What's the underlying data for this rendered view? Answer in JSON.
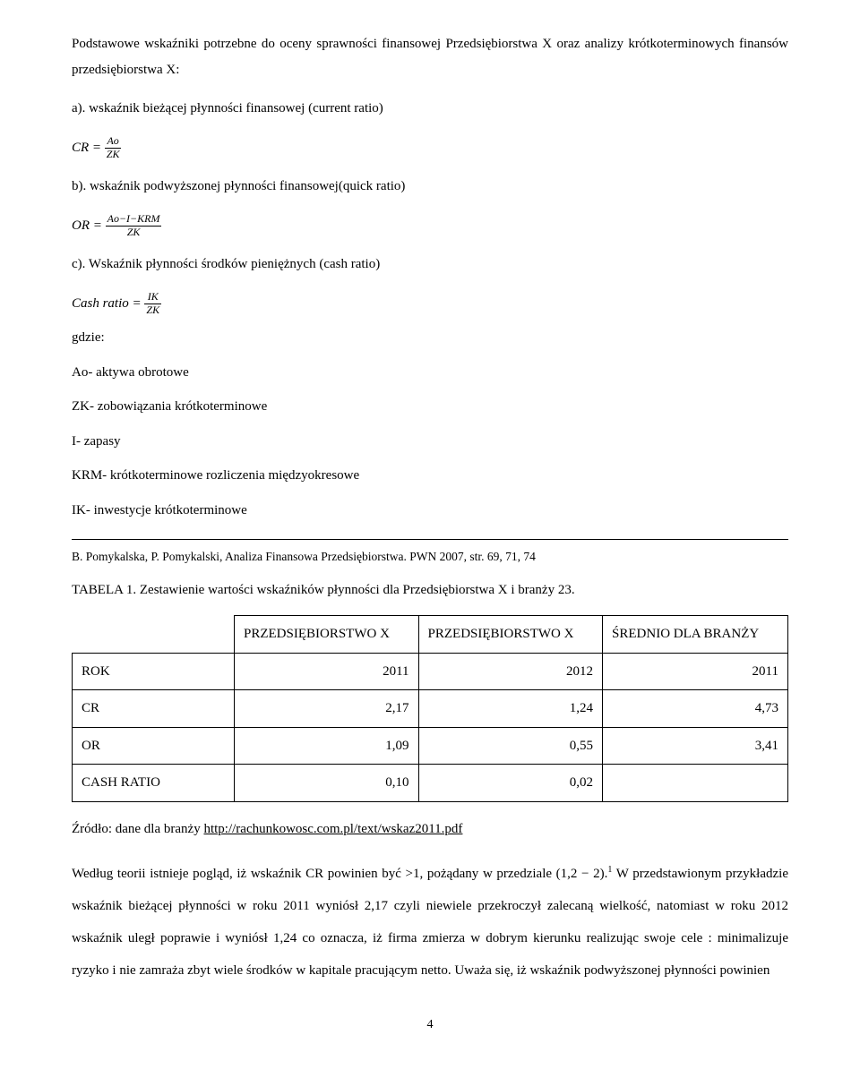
{
  "intro": {
    "p1": "Podstawowe wskaźniki potrzebne do oceny sprawności finansowej Przedsiębiorstwa X oraz analizy krótkoterminowych finansów przedsiębiorstwa X:"
  },
  "sections": {
    "a_label": "a). wskaźnik bieżącej płynności finansowej (current ratio)",
    "b_label": "b). wskaźnik podwyższonej płynności finansowej(quick ratio)",
    "c_label": "c). Wskaźnik płynności środków pieniężnych (cash ratio)"
  },
  "formulas": {
    "cr_lhs": "CR =",
    "cr_num": "Ao",
    "cr_den": "ZK",
    "or_lhs": "OR =",
    "or_num": "Ao−I−KRM",
    "or_den": "ZK",
    "cash_lhs": "Cash ratio =",
    "cash_num": "IK",
    "cash_den": "ZK"
  },
  "defs": {
    "where": "gdzie:",
    "ao": "Ao- aktywa obrotowe",
    "zk": "ZK- zobowiązania krótkoterminowe",
    "i": "I- zapasy",
    "krm": "KRM- krótkoterminowe rozliczenia międzyokresowe",
    "ik": "IK- inwestycje krótkoterminowe"
  },
  "footnote_source": "B. Pomykalska, P. Pomykalski, Analiza Finansowa Przedsiębiorstwa. PWN 2007, str. 69, 71, 74",
  "table_caption": "TABELA  1. Zestawienie wartości wskaźników płynności dla Przedsiębiorstwa X i branży 23.",
  "table": {
    "col1": "PRZEDSIĘBIORSTWO X",
    "col2": "PRZEDSIĘBIORSTWO X",
    "col3": "ŚREDNIO DLA BRANŻY",
    "rows": [
      {
        "label": "ROK",
        "v1": "2011",
        "v2": "2012",
        "v3": "2011"
      },
      {
        "label": "CR",
        "v1": "2,17",
        "v2": "1,24",
        "v3": "4,73"
      },
      {
        "label": "OR",
        "v1": "1,09",
        "v2": "0,55",
        "v3": "3,41"
      },
      {
        "label": "CASH RATIO",
        "v1": "0,10",
        "v2": "0,02",
        "v3": ""
      }
    ]
  },
  "source_line_prefix": "Źródło: dane dla branży ",
  "source_url": "http://rachunkowosc.com.pl/text/wskaz2011.pdf",
  "body": {
    "t1": "Według teorii istnieje pogląd, iż wskaźnik CR powinien być >1, pożądany w przedziale ",
    "interval": "(1,2 − 2).",
    "sup": "1",
    "t2": " W przedstawionym przykładzie wskaźnik bieżącej płynności  w roku 2011 wyniósł 2,17 czyli niewiele przekroczył zalecaną wielkość, natomiast w roku 2012 wskaźnik uległ poprawie i wyniósł 1,24 co oznacza, iż firma zmierza w dobrym kierunku realizując swoje cele : minimalizuje ryzyko i nie zamraża zbyt wiele środków w kapitale pracującym netto.  Uważa się, iż wskaźnik podwyższonej płynności powinien"
  },
  "page_number": "4"
}
